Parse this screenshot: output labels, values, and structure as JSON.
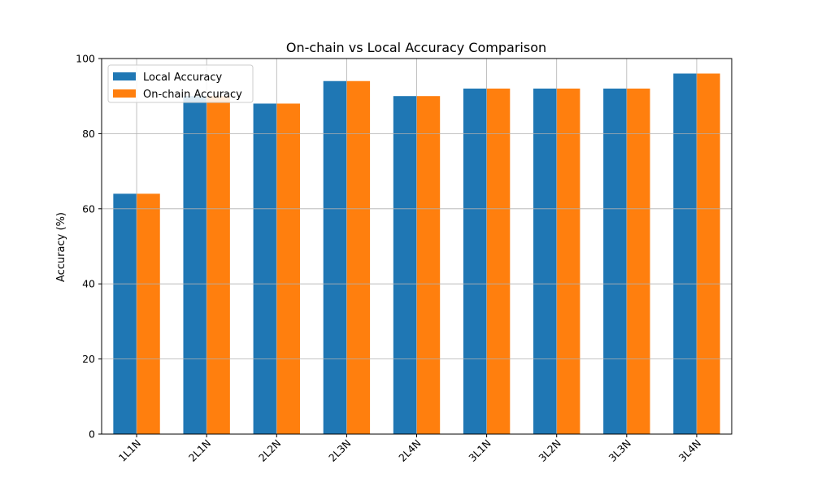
{
  "chart_data": {
    "type": "bar",
    "title": "On-chain vs Local Accuracy Comparison",
    "xlabel": "",
    "ylabel": "Accuracy (%)",
    "categories": [
      "1L1N",
      "2L1N",
      "2L2N",
      "2L3N",
      "2L4N",
      "3L1N",
      "3L2N",
      "3L3N",
      "3L4N"
    ],
    "series": [
      {
        "name": "Local Accuracy",
        "color": "#1f77b4",
        "values": [
          64,
          90,
          88,
          94,
          90,
          92,
          92,
          92,
          96
        ]
      },
      {
        "name": "On-chain Accuracy",
        "color": "#ff7f0e",
        "values": [
          64,
          90,
          88,
          94,
          90,
          92,
          92,
          92,
          96
        ]
      }
    ],
    "ylim": [
      0,
      100
    ],
    "yticks": [
      0,
      20,
      40,
      60,
      80,
      100
    ],
    "grid": true,
    "legend": "top-left"
  }
}
